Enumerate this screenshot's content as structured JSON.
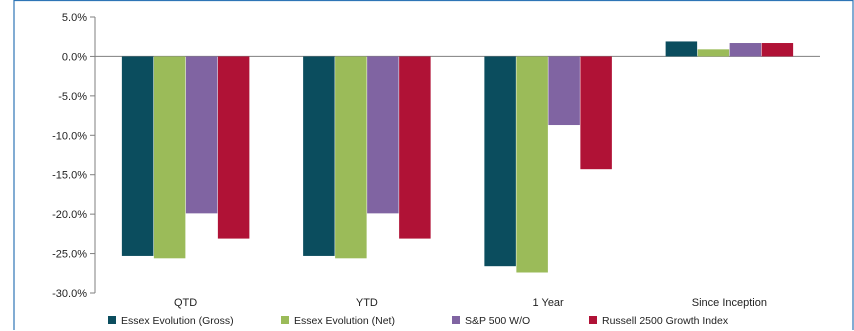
{
  "chart_data": {
    "type": "bar",
    "categories": [
      "QTD",
      "YTD",
      "1 Year",
      "Since Inception"
    ],
    "series": [
      {
        "name": "Essex Evolution (Gross)",
        "values": [
          -25.3,
          -25.3,
          -26.6,
          1.9
        ],
        "color": "#0b4d5e"
      },
      {
        "name": "Essex Evolution (Net)",
        "values": [
          -25.6,
          -25.6,
          -27.4,
          0.9
        ],
        "color": "#9bbb59"
      },
      {
        "name": "S&P 500 W/O",
        "values": [
          -19.9,
          -19.9,
          -8.7,
          1.7
        ],
        "color": "#8064a2"
      },
      {
        "name": "Russell 2500 Growth Index",
        "values": [
          -23.1,
          -23.1,
          -14.3,
          1.7
        ],
        "color": "#b01236"
      }
    ],
    "ylim": [
      -30,
      5
    ],
    "yticks": [
      5,
      0,
      -5,
      -10,
      -15,
      -20,
      -25,
      -30
    ],
    "ytick_labels": [
      "5.0%",
      "0.0%",
      "-5.0%",
      "-10.0%",
      "-15.0%",
      "-20.0%",
      "-25.0%",
      "-30.0%"
    ],
    "grid": false,
    "legend": "bottom",
    "border_color": "#2e75b6",
    "axis_color": "#7f7f7f"
  }
}
